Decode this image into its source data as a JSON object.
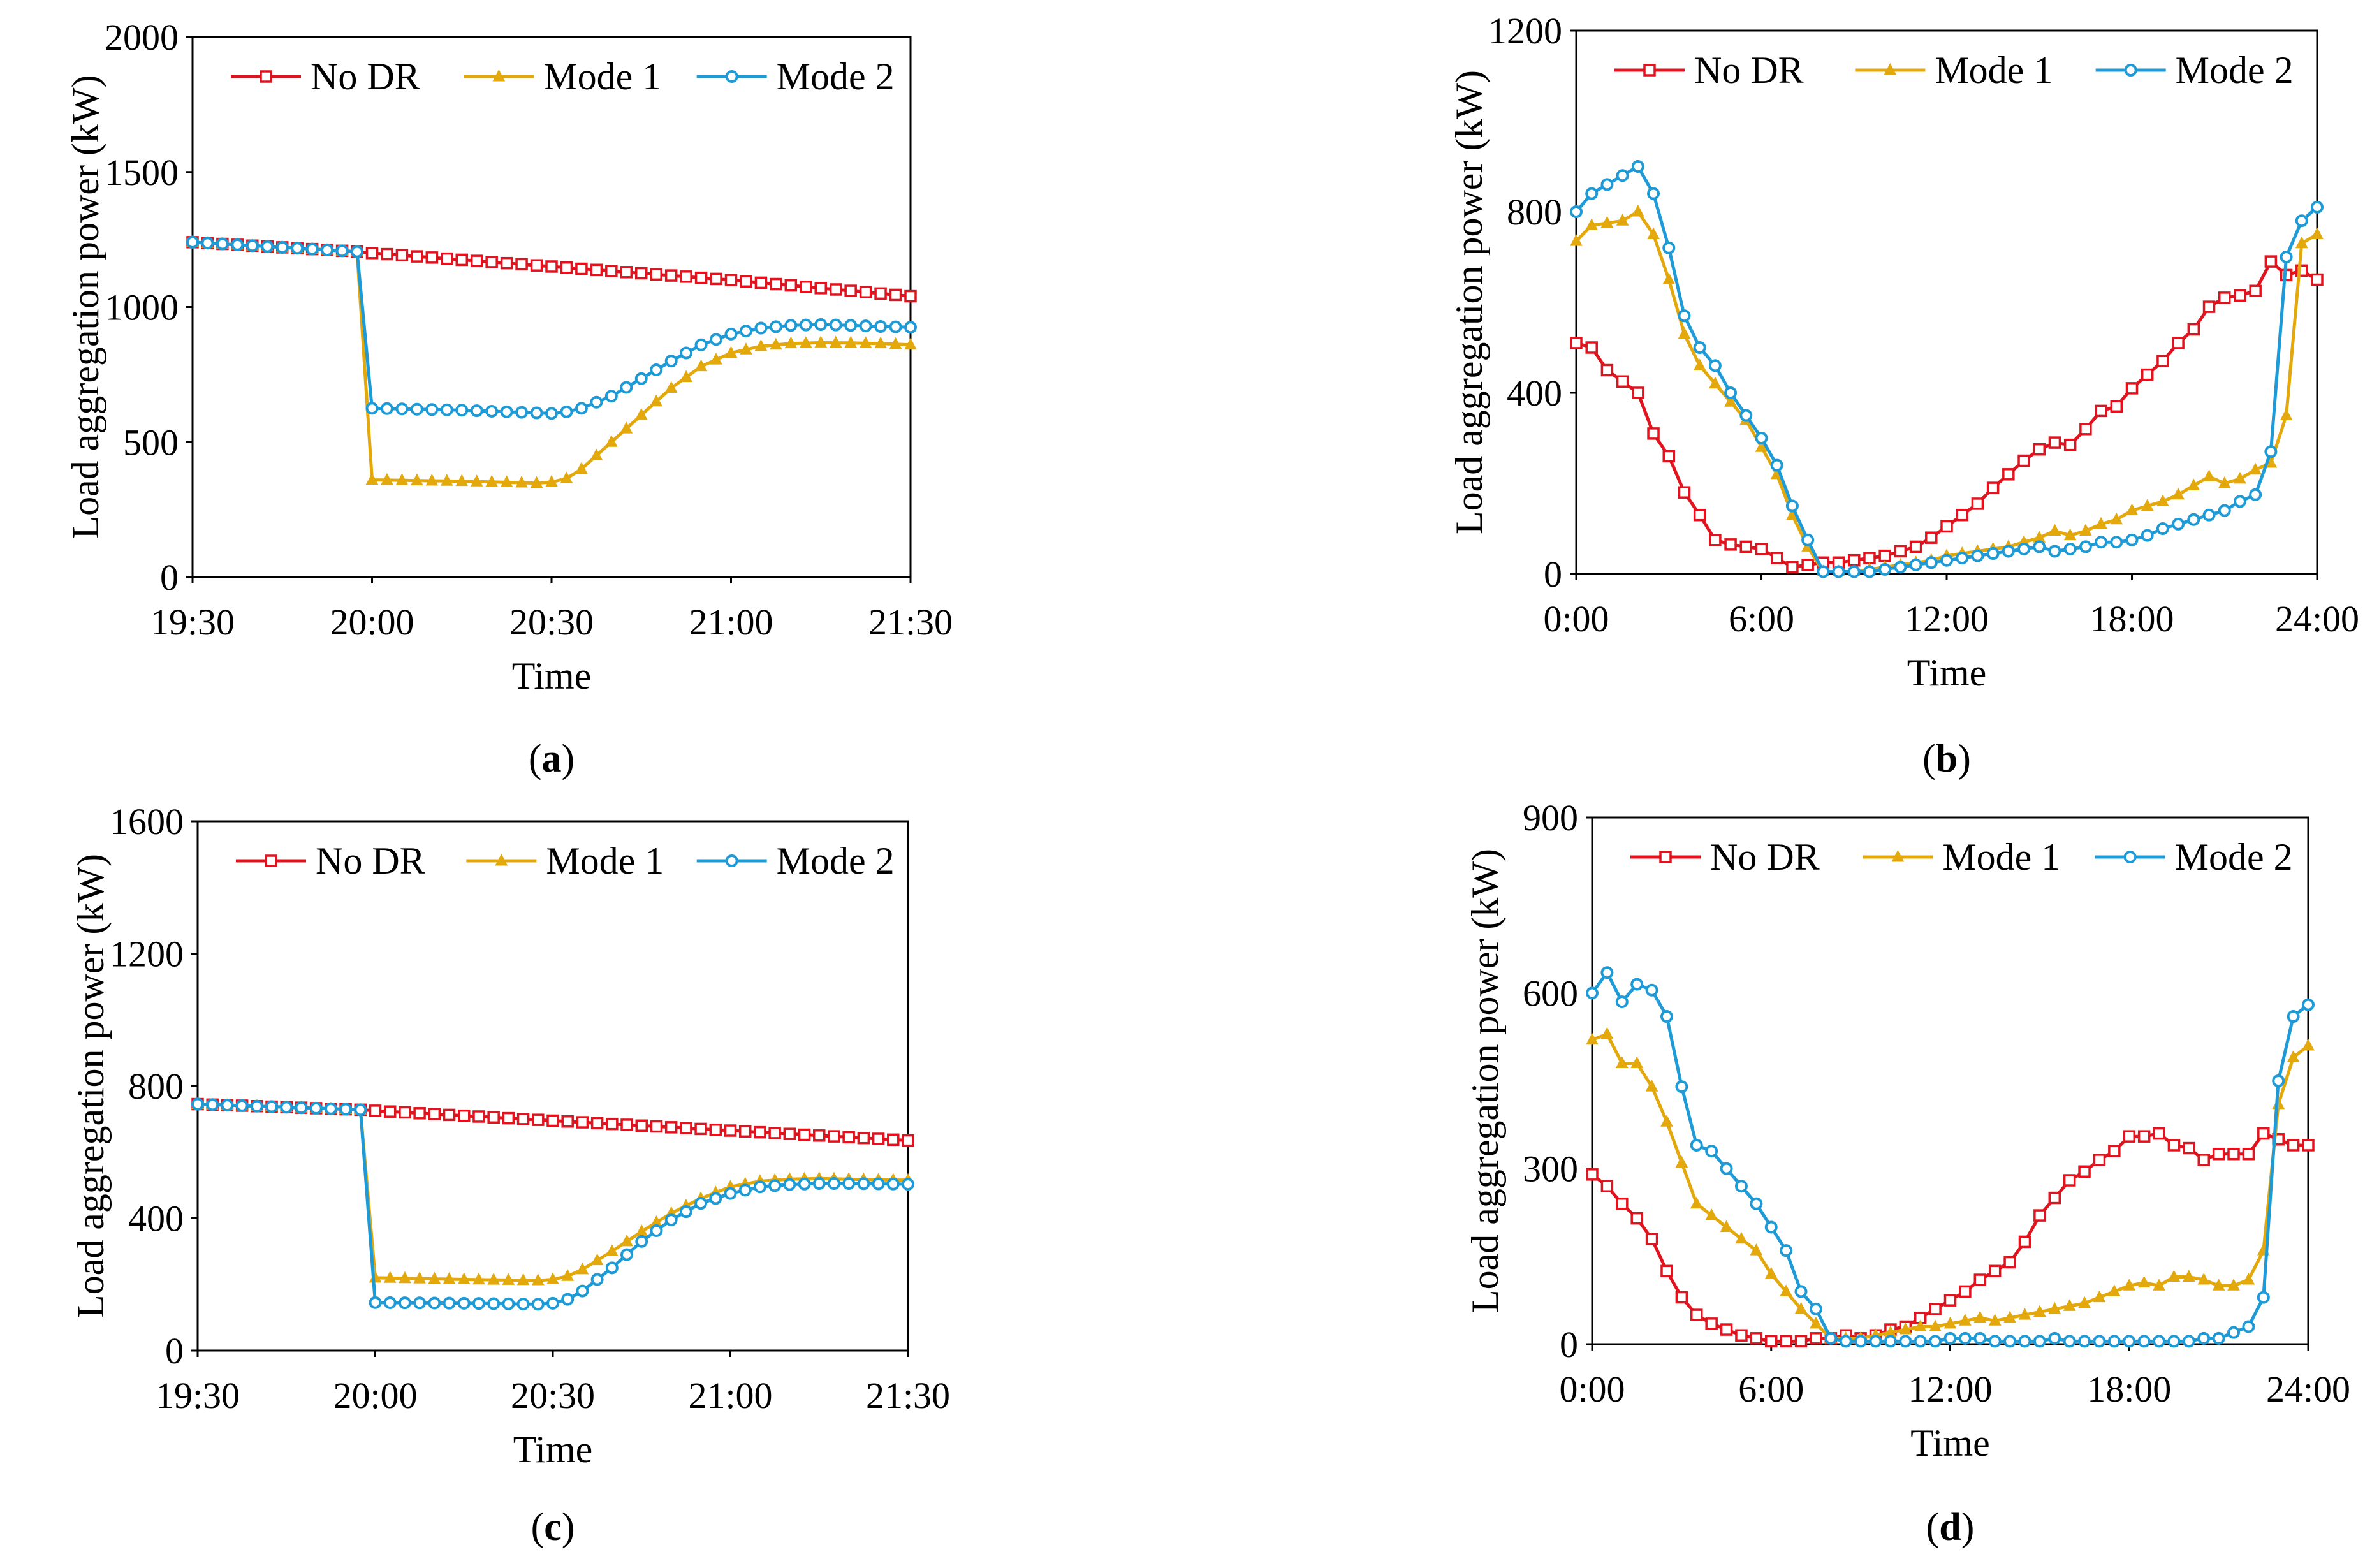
{
  "figure": {
    "series_styles": [
      {
        "name": "No DR",
        "color": "#E0141E",
        "marker": "square"
      },
      {
        "name": "Mode 1",
        "color": "#E3A80C",
        "marker": "triangle"
      },
      {
        "name": "Mode 2",
        "color": "#1E9BD7",
        "marker": "circle"
      }
    ]
  },
  "chart_data": [
    {
      "id": "a",
      "type": "line",
      "caption": "(a)",
      "caption_letter": "a",
      "xlabel": "Time",
      "ylabel": "Load aggregation power (kW)",
      "x_unit": "minutes since 19:30",
      "xlim": [
        0,
        120
      ],
      "ylim": [
        0,
        2000
      ],
      "yticks": [
        0,
        500,
        1000,
        1500,
        2000
      ],
      "ytick_labels": [
        "0",
        "500",
        "1000",
        "1500",
        "2000"
      ],
      "xticks": [
        0,
        30,
        60,
        90,
        120
      ],
      "xtick_labels": [
        "19:30",
        "20:00",
        "20:30",
        "21:00",
        "21:30"
      ],
      "legend_position": "top",
      "series": [
        {
          "name": "No DR",
          "marker_every": 2.5,
          "x": [
            0,
            27.5,
            30,
            60,
            90,
            120
          ],
          "y": [
            1240,
            1205,
            1200,
            1150,
            1100,
            1040
          ]
        },
        {
          "name": "Mode 1",
          "marker_every": 2.5,
          "x": [
            0,
            27.5,
            30,
            45,
            57.5,
            60,
            62.5,
            65,
            70,
            75,
            80,
            85,
            90,
            95,
            100,
            105,
            110,
            115,
            120
          ],
          "y": [
            1240,
            1205,
            360,
            355,
            348,
            352,
            365,
            400,
            500,
            600,
            700,
            780,
            830,
            855,
            865,
            868,
            867,
            865,
            860
          ]
        },
        {
          "name": "Mode 2",
          "marker_every": 2.5,
          "x": [
            0,
            27.5,
            30,
            45,
            57.5,
            60,
            62.5,
            65,
            70,
            75,
            80,
            85,
            90,
            95,
            100,
            105,
            110,
            115,
            120
          ],
          "y": [
            1240,
            1205,
            625,
            618,
            608,
            606,
            612,
            625,
            670,
            735,
            800,
            860,
            900,
            922,
            932,
            935,
            932,
            928,
            925
          ]
        }
      ]
    },
    {
      "id": "b",
      "type": "line",
      "caption": "(b)",
      "caption_letter": "b",
      "xlabel": "Time",
      "ylabel": "Load aggregation power (kW)",
      "x_unit": "hours",
      "xlim": [
        0,
        24
      ],
      "ylim": [
        0,
        1200
      ],
      "yticks": [
        0,
        400,
        800,
        1200
      ],
      "ytick_labels": [
        "0",
        "400",
        "800",
        "1200"
      ],
      "xticks": [
        0,
        6,
        12,
        18,
        24
      ],
      "xtick_labels": [
        "0:00",
        "6:00",
        "12:00",
        "18:00",
        "24:00"
      ],
      "legend_position": "top",
      "series": [
        {
          "name": "No DR",
          "marker_every": 0.5,
          "x": [
            0,
            0.5,
            1,
            1.5,
            2,
            2.5,
            3,
            3.5,
            4,
            4.5,
            5,
            5.5,
            6,
            6.5,
            7,
            7.5,
            8,
            8.5,
            9,
            9.5,
            10,
            10.5,
            11,
            11.5,
            12,
            12.5,
            13,
            13.5,
            14,
            14.5,
            15,
            15.5,
            16,
            16.5,
            17,
            17.5,
            18,
            18.5,
            19,
            19.5,
            20,
            20.5,
            21,
            21.5,
            22,
            22.5,
            23,
            23.5,
            24
          ],
          "y": [
            510,
            500,
            450,
            425,
            400,
            310,
            260,
            180,
            130,
            75,
            65,
            60,
            55,
            35,
            15,
            20,
            25,
            25,
            30,
            35,
            40,
            50,
            60,
            80,
            105,
            130,
            155,
            190,
            220,
            250,
            275,
            290,
            285,
            320,
            360,
            370,
            410,
            440,
            470,
            510,
            540,
            590,
            610,
            615,
            625,
            690,
            660,
            670,
            650
          ]
        },
        {
          "name": "Mode 1",
          "marker_every": 0.5,
          "x": [
            0,
            0.5,
            1,
            1.5,
            2,
            2.5,
            3,
            3.5,
            4,
            4.5,
            5,
            5.5,
            6,
            6.5,
            7,
            7.5,
            8,
            8.5,
            9,
            9.5,
            10,
            10.5,
            11,
            11.5,
            12,
            12.5,
            13,
            13.5,
            14,
            14.5,
            15,
            15.5,
            16,
            16.5,
            17,
            17.5,
            18,
            18.5,
            19,
            19.5,
            20,
            20.5,
            21,
            21.5,
            22,
            22.5,
            23,
            23.5,
            24
          ],
          "y": [
            735,
            770,
            775,
            780,
            800,
            750,
            650,
            530,
            460,
            420,
            380,
            340,
            280,
            220,
            130,
            60,
            5,
            5,
            5,
            10,
            15,
            20,
            25,
            30,
            40,
            45,
            50,
            55,
            60,
            70,
            80,
            95,
            85,
            95,
            110,
            120,
            140,
            150,
            160,
            175,
            195,
            215,
            200,
            210,
            230,
            245,
            350,
            730,
            750
          ]
        },
        {
          "name": "Mode 2",
          "marker_every": 0.5,
          "x": [
            0,
            0.5,
            1,
            1.5,
            2,
            2.5,
            3,
            3.5,
            4,
            4.5,
            5,
            5.5,
            6,
            6.5,
            7,
            7.5,
            8,
            8.5,
            9,
            9.5,
            10,
            10.5,
            11,
            11.5,
            12,
            12.5,
            13,
            13.5,
            14,
            14.5,
            15,
            15.5,
            16,
            16.5,
            17,
            17.5,
            18,
            18.5,
            19,
            19.5,
            20,
            20.5,
            21,
            21.5,
            22,
            22.5,
            23,
            23.5,
            24
          ],
          "y": [
            800,
            840,
            860,
            880,
            900,
            840,
            720,
            570,
            500,
            460,
            400,
            350,
            300,
            240,
            150,
            75,
            5,
            5,
            5,
            5,
            10,
            15,
            20,
            25,
            30,
            35,
            40,
            45,
            50,
            55,
            60,
            50,
            55,
            60,
            70,
            70,
            75,
            85,
            100,
            110,
            120,
            130,
            140,
            160,
            175,
            270,
            700,
            780,
            810
          ]
        }
      ]
    },
    {
      "id": "c",
      "type": "line",
      "caption": "(c)",
      "caption_letter": "c",
      "xlabel": "Time",
      "ylabel": "Load aggregation power (kW)",
      "x_unit": "minutes since 19:30",
      "xlim": [
        0,
        120
      ],
      "ylim": [
        0,
        1600
      ],
      "yticks": [
        0,
        400,
        800,
        1200,
        1600
      ],
      "ytick_labels": [
        "0",
        "400",
        "800",
        "1200",
        "1600"
      ],
      "xticks": [
        0,
        30,
        60,
        90,
        120
      ],
      "xtick_labels": [
        "19:30",
        "20:00",
        "20:30",
        "21:00",
        "21:30"
      ],
      "legend_position": "top",
      "series": [
        {
          "name": "No DR",
          "marker_every": 2.5,
          "x": [
            0,
            27.5,
            30,
            60,
            90,
            120
          ],
          "y": [
            745,
            728,
            725,
            695,
            665,
            635
          ]
        },
        {
          "name": "Mode 1",
          "marker_every": 2.5,
          "x": [
            0,
            27.5,
            30,
            45,
            57.5,
            60,
            62.5,
            65,
            70,
            75,
            80,
            85,
            90,
            95,
            100,
            105,
            110,
            115,
            120
          ],
          "y": [
            745,
            728,
            220,
            215,
            212,
            215,
            225,
            245,
            300,
            360,
            415,
            460,
            495,
            512,
            518,
            520,
            518,
            516,
            515
          ]
        },
        {
          "name": "Mode 2",
          "marker_every": 2.5,
          "x": [
            0,
            27.5,
            30,
            45,
            57.5,
            60,
            62.5,
            65,
            70,
            75,
            80,
            85,
            90,
            95,
            100,
            105,
            110,
            115,
            120
          ],
          "y": [
            745,
            728,
            145,
            143,
            140,
            143,
            155,
            180,
            250,
            330,
            395,
            445,
            475,
            495,
            502,
            505,
            505,
            504,
            503
          ]
        }
      ]
    },
    {
      "id": "d",
      "type": "line",
      "caption": "(d)",
      "caption_letter": "d",
      "xlabel": "Time",
      "ylabel": "Load aggregation power (kW)",
      "x_unit": "hours",
      "xlim": [
        0,
        24
      ],
      "ylim": [
        0,
        900
      ],
      "yticks": [
        0,
        300,
        600,
        900
      ],
      "ytick_labels": [
        "0",
        "300",
        "600",
        "900"
      ],
      "xticks": [
        0,
        6,
        12,
        18,
        24
      ],
      "xtick_labels": [
        "0:00",
        "6:00",
        "12:00",
        "18:00",
        "24:00"
      ],
      "legend_position": "top",
      "series": [
        {
          "name": "No DR",
          "marker_every": 0.5,
          "x": [
            0,
            0.5,
            1,
            1.5,
            2,
            2.5,
            3,
            3.5,
            4,
            4.5,
            5,
            5.5,
            6,
            6.5,
            7,
            7.5,
            8,
            8.5,
            9,
            9.5,
            10,
            10.5,
            11,
            11.5,
            12,
            12.5,
            13,
            13.5,
            14,
            14.5,
            15,
            15.5,
            16,
            16.5,
            17,
            17.5,
            18,
            18.5,
            19,
            19.5,
            20,
            20.5,
            21,
            21.5,
            22,
            22.5,
            23,
            23.5,
            24
          ],
          "y": [
            290,
            270,
            240,
            215,
            180,
            125,
            80,
            50,
            35,
            25,
            15,
            10,
            5,
            5,
            5,
            10,
            10,
            15,
            10,
            15,
            25,
            30,
            45,
            60,
            75,
            90,
            110,
            125,
            140,
            175,
            220,
            250,
            280,
            295,
            315,
            330,
            355,
            355,
            360,
            340,
            335,
            315,
            325,
            325,
            325,
            360,
            350,
            340,
            340
          ]
        },
        {
          "name": "Mode 1",
          "marker_every": 0.5,
          "x": [
            0,
            0.5,
            1,
            1.5,
            2,
            2.5,
            3,
            3.5,
            4,
            4.5,
            5,
            5.5,
            6,
            6.5,
            7,
            7.5,
            8,
            8.5,
            9,
            9.5,
            10,
            10.5,
            11,
            11.5,
            12,
            12.5,
            13,
            13.5,
            14,
            14.5,
            15,
            15.5,
            16,
            16.5,
            17,
            17.5,
            18,
            18.5,
            19,
            19.5,
            20,
            20.5,
            21,
            21.5,
            22,
            22.5,
            23,
            23.5,
            24
          ],
          "y": [
            520,
            530,
            480,
            480,
            440,
            380,
            310,
            240,
            220,
            200,
            180,
            160,
            120,
            90,
            60,
            35,
            10,
            10,
            10,
            15,
            20,
            25,
            30,
            30,
            35,
            40,
            45,
            40,
            45,
            50,
            55,
            60,
            65,
            70,
            80,
            90,
            100,
            105,
            100,
            115,
            115,
            110,
            100,
            100,
            110,
            160,
            410,
            490,
            510
          ]
        },
        {
          "name": "Mode 2",
          "marker_every": 0.5,
          "x": [
            0,
            0.5,
            1,
            1.5,
            2,
            2.5,
            3,
            3.5,
            4,
            4.5,
            5,
            5.5,
            6,
            6.5,
            7,
            7.5,
            8,
            8.5,
            9,
            9.5,
            10,
            10.5,
            11,
            11.5,
            12,
            12.5,
            13,
            13.5,
            14,
            14.5,
            15,
            15.5,
            16,
            16.5,
            17,
            17.5,
            18,
            18.5,
            19,
            19.5,
            20,
            20.5,
            21,
            21.5,
            22,
            22.5,
            23,
            23.5,
            24
          ],
          "y": [
            600,
            635,
            585,
            615,
            605,
            560,
            440,
            340,
            330,
            300,
            270,
            240,
            200,
            160,
            90,
            60,
            10,
            5,
            5,
            5,
            5,
            5,
            5,
            5,
            10,
            10,
            10,
            5,
            5,
            5,
            5,
            10,
            5,
            5,
            5,
            5,
            5,
            5,
            5,
            5,
            5,
            10,
            10,
            20,
            30,
            80,
            450,
            560,
            580
          ]
        }
      ]
    }
  ]
}
